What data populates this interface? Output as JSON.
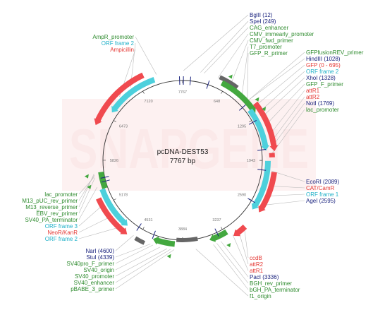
{
  "plasmid": {
    "name": "pcDNA-DEST53",
    "length_label": "7767 bp",
    "length": 7767
  },
  "watermark": "SNAPGENE",
  "colors": {
    "navy": "#1a237e",
    "green": "#2e8b2e",
    "red": "#e53935",
    "cyan": "#1fb0c8",
    "feature_red": "#f04a4f",
    "feature_cyan": "#4dd0dc",
    "feature_green": "#43a83f",
    "feature_gray": "#666666",
    "backbone": "#333333"
  },
  "ticks": [
    {
      "pos": 7767,
      "label": "7767"
    },
    {
      "pos": 648,
      "label": "648"
    },
    {
      "pos": 1295,
      "label": "1295"
    },
    {
      "pos": 1943,
      "label": "1943"
    },
    {
      "pos": 2590,
      "label": "2590"
    },
    {
      "pos": 3237,
      "label": "3237"
    },
    {
      "pos": 3884,
      "label": "3884"
    },
    {
      "pos": 4531,
      "label": "4531"
    },
    {
      "pos": 5178,
      "label": "5178"
    },
    {
      "pos": 5826,
      "label": "5826"
    },
    {
      "pos": 6473,
      "label": "6473"
    },
    {
      "pos": 7120,
      "label": "7120"
    }
  ],
  "features": [
    {
      "name": "Ampicillin-arc",
      "start": 6300,
      "end": 7230,
      "ring": 20,
      "type": "red",
      "dir": -1
    },
    {
      "name": "ORF2-top-arc",
      "start": 6560,
      "end": 7350,
      "ring": 8,
      "type": "cyan",
      "dir": -1
    },
    {
      "name": "gray-top",
      "start": 520,
      "end": 800,
      "ring": 16,
      "type": "gray",
      "dir": 0
    },
    {
      "name": "cmv-green-arc",
      "start": 580,
      "end": 1230,
      "ring": 10,
      "type": "green",
      "dir": 1
    },
    {
      "name": "gfp-red-arc",
      "start": 1120,
      "end": 1820,
      "ring": 18,
      "type": "red",
      "dir": 1
    },
    {
      "name": "orf2-right-arc",
      "start": 1150,
      "end": 1800,
      "ring": 6,
      "type": "cyan",
      "dir": 1
    },
    {
      "name": "attR-small",
      "start": 1840,
      "end": 1900,
      "ring": 14,
      "type": "red",
      "dir": 0
    },
    {
      "name": "orf1-right-arc",
      "start": 1950,
      "end": 2700,
      "ring": 8,
      "type": "cyan",
      "dir": 1
    },
    {
      "name": "cat-red-arc",
      "start": 2100,
      "end": 2680,
      "ring": 18,
      "type": "red",
      "dir": 1
    },
    {
      "name": "ccdb-red",
      "start": 2950,
      "end": 3150,
      "ring": 16,
      "type": "red",
      "dir": 1
    },
    {
      "name": "bgh-green",
      "start": 3200,
      "end": 3480,
      "ring": 6,
      "type": "green",
      "dir": 1
    },
    {
      "name": "f1-gray",
      "start": 3650,
      "end": 3980,
      "ring": 0,
      "type": "gray",
      "dir": 0
    },
    {
      "name": "sv40-green",
      "start": 4000,
      "end": 4330,
      "ring": 6,
      "type": "green",
      "dir": 1
    },
    {
      "name": "sv40-gray",
      "start": 4420,
      "end": 4560,
      "ring": 16,
      "type": "gray",
      "dir": 0
    },
    {
      "name": "neo-red-arc",
      "start": 4680,
      "end": 5300,
      "ring": 18,
      "type": "red",
      "dir": -1
    },
    {
      "name": "orf3-cyan-arc",
      "start": 4750,
      "end": 5400,
      "ring": 8,
      "type": "cyan",
      "dir": -1
    },
    {
      "name": "sv40pa-green",
      "start": 5400,
      "end": 5650,
      "ring": 4,
      "type": "green",
      "dir": 0
    }
  ],
  "labels": {
    "right_top": [
      {
        "text": "BglII (12)",
        "color": "navy"
      },
      {
        "text": "SpeI (249)",
        "color": "navy"
      },
      {
        "text": "CAG_enhancer",
        "color": "green"
      },
      {
        "text": "CMV_immearly_promoter",
        "color": "green"
      },
      {
        "text": "CMV_fwd_primer",
        "color": "green"
      },
      {
        "text": "T7_promoter",
        "color": "green"
      },
      {
        "text": "GFP_R_primer",
        "color": "green"
      }
    ],
    "right_mid": [
      {
        "text": "GFPfusionREV_primer",
        "color": "green"
      },
      {
        "text": "HindIII (1028)",
        "color": "navy"
      },
      {
        "text": "GFP (0 - 695)",
        "color": "red"
      },
      {
        "text": "ORF frame 2",
        "color": "cyan"
      },
      {
        "text": "XhoI (1328)",
        "color": "navy"
      },
      {
        "text": "GFP_F_primer",
        "color": "green"
      },
      {
        "text": "attR1",
        "color": "red"
      },
      {
        "text": "attR2",
        "color": "red"
      },
      {
        "text": "NotI (1769)",
        "color": "navy"
      },
      {
        "text": "lac_promoter",
        "color": "green"
      }
    ],
    "right_low": [
      {
        "text": "EcoRI (2089)",
        "color": "navy"
      },
      {
        "text": "CAT/CamR",
        "color": "red"
      },
      {
        "text": "ORF frame 1",
        "color": "cyan"
      },
      {
        "text": "AgeI (2595)",
        "color": "navy"
      }
    ],
    "right_bottom": [
      {
        "text": "ccdB",
        "color": "red"
      },
      {
        "text": "attR2",
        "color": "red"
      },
      {
        "text": "attR1",
        "color": "red"
      },
      {
        "text": "PacI (3336)",
        "color": "navy"
      },
      {
        "text": "BGH_rev_primer",
        "color": "green"
      },
      {
        "text": "bGH_PA_terminator",
        "color": "green"
      },
      {
        "text": "f1_origin",
        "color": "green"
      }
    ],
    "left_top": [
      {
        "text": "AmpR_promoter",
        "color": "green"
      },
      {
        "text": "ORF frame 2",
        "color": "cyan"
      },
      {
        "text": "Ampicillin",
        "color": "red"
      }
    ],
    "left_mid": [
      {
        "text": "lac_promoter",
        "color": "green"
      },
      {
        "text": "M13_pUC_rev_primer",
        "color": "green"
      },
      {
        "text": "M13_reverse_primer",
        "color": "green"
      },
      {
        "text": "EBV_rev_primer",
        "color": "green"
      },
      {
        "text": "SV40_PA_terminator",
        "color": "green"
      },
      {
        "text": "ORF frame 3",
        "color": "cyan"
      },
      {
        "text": "NeoR/KanR",
        "color": "red"
      },
      {
        "text": "ORF frame 2",
        "color": "cyan"
      }
    ],
    "left_bottom": [
      {
        "text": "NarI (4600)",
        "color": "navy"
      },
      {
        "text": "StuI (4339)",
        "color": "navy"
      },
      {
        "text": "SV40pro_F_primer",
        "color": "green"
      },
      {
        "text": "SV40_origin",
        "color": "green"
      },
      {
        "text": "SV40_promoter",
        "color": "green"
      },
      {
        "text": "SV40_enhancer",
        "color": "green"
      },
      {
        "text": "pBABE_3_primer",
        "color": "green"
      }
    ]
  }
}
